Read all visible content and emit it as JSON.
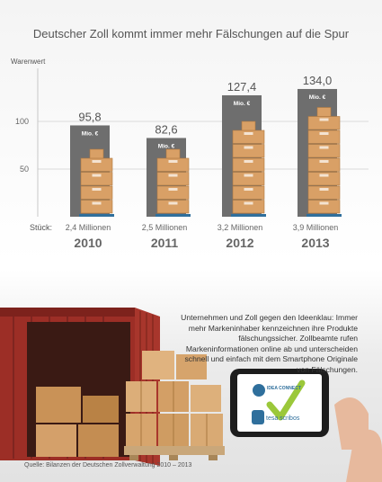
{
  "chart_data": {
    "type": "bar",
    "title": "Deutscher Zoll kommt immer mehr Fälschungen auf die Spur",
    "ylabel": "Warenwert",
    "yticks": [
      50,
      100
    ],
    "ylim": [
      0,
      150
    ],
    "unit_label": "Mio. €",
    "categories": [
      "2010",
      "2011",
      "2012",
      "2013"
    ],
    "values": [
      95.8,
      82.6,
      127.4,
      134.0
    ],
    "value_labels": [
      "95,8",
      "82,6",
      "127,4",
      "134,0"
    ],
    "count_label": "Stück:",
    "counts": [
      "2,4 Millionen",
      "2,5 Millionen",
      "3,2 Millionen",
      "3,9 Millionen"
    ],
    "count_values": [
      2.4,
      2.5,
      3.2,
      3.9
    ],
    "colors": {
      "bar": "#6e6e6e",
      "box": "#d9a066",
      "box_dark": "#b07840",
      "pallet": "#2f6f9c",
      "grid": "#d0d0d0"
    }
  },
  "info_text": "Unternehmen und Zoll gegen den Ideenklau: Immer mehr Markeninhaber kennzeichnen ihre Produkte fälschungssicher. Zollbeamte rufen Markeninformationen online ab und unterscheiden schnell und einfach mit dem Smartphone Originale von Fälschungen.",
  "phone": {
    "logo1": "IDEA CONNECT",
    "logo2": "tesa scribos"
  },
  "source": "Quelle: Bilanzen der Deutschen Zollverwaltung 2010 – 2013"
}
